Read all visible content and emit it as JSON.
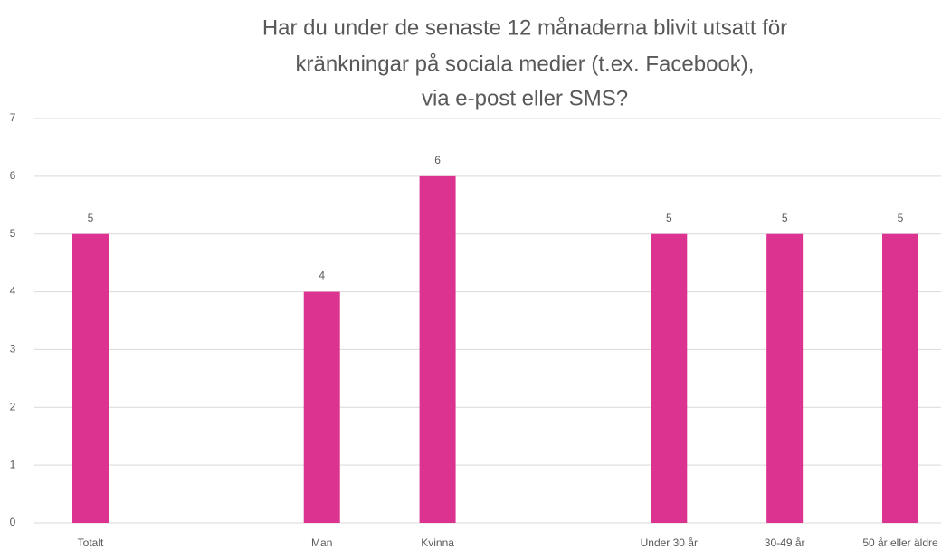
{
  "chart_data": {
    "type": "bar",
    "title": [
      "Har du under de senaste 12 månaderna blivit utsatt för",
      "kränkningar på sociala medier (t.ex. Facebook),",
      "via e-post eller SMS?"
    ],
    "categories": [
      "Totalt",
      null,
      "Man",
      "Kvinna",
      null,
      "Under 30 år",
      "30-49 år",
      "50 år eller äldre"
    ],
    "values": [
      5,
      null,
      4,
      6,
      null,
      5,
      5,
      5
    ],
    "color": "#dd3390",
    "ylim": [
      0,
      7
    ],
    "yticks": [
      0,
      1,
      2,
      3,
      4,
      5,
      6,
      7
    ],
    "grid": true
  }
}
